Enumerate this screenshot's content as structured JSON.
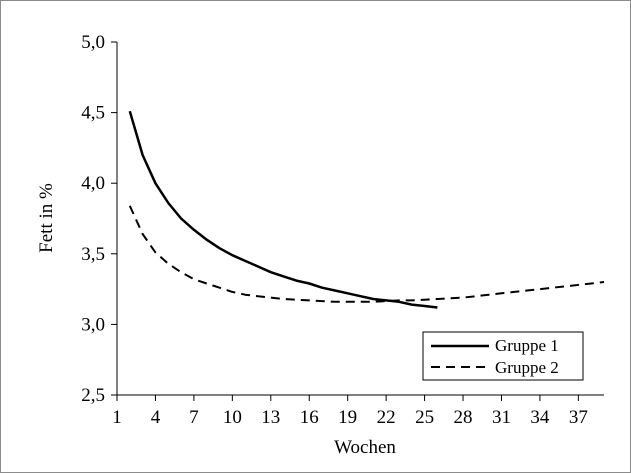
{
  "chart_data": {
    "type": "line",
    "xlabel": "Wochen",
    "ylabel": "Fett in %",
    "xlim": [
      1,
      39
    ],
    "ylim": [
      2.5,
      5.0
    ],
    "x_ticks": [
      1,
      4,
      7,
      10,
      13,
      16,
      19,
      22,
      25,
      28,
      31,
      34,
      37
    ],
    "y_ticks": [
      "2,5",
      "3,0",
      "3,5",
      "4,0",
      "4,5",
      "5,0"
    ],
    "y_tick_values": [
      2.5,
      3.0,
      3.5,
      4.0,
      4.5,
      5.0
    ],
    "grid": false,
    "legend_position": "bottom-right",
    "series": [
      {
        "name": "Gruppe 1",
        "style": "solid",
        "color": "#000000",
        "x": [
          2,
          3,
          4,
          5,
          6,
          7,
          8,
          9,
          10,
          11,
          12,
          13,
          14,
          15,
          16,
          17,
          18,
          19,
          20,
          21,
          22,
          23,
          24,
          25,
          26
        ],
        "y": [
          4.51,
          4.2,
          4.0,
          3.86,
          3.75,
          3.67,
          3.6,
          3.54,
          3.49,
          3.45,
          3.41,
          3.37,
          3.34,
          3.31,
          3.29,
          3.26,
          3.24,
          3.22,
          3.2,
          3.18,
          3.17,
          3.16,
          3.14,
          3.13,
          3.12
        ]
      },
      {
        "name": "Gruppe 2",
        "style": "dashed",
        "color": "#000000",
        "x": [
          2,
          3,
          4,
          5,
          6,
          7,
          8,
          9,
          10,
          11,
          12,
          13,
          14,
          15,
          16,
          17,
          18,
          19,
          20,
          21,
          22,
          23,
          24,
          25,
          26,
          27,
          28,
          29,
          30,
          31,
          32,
          33,
          34,
          35,
          36,
          37,
          38,
          39
        ],
        "y": [
          3.84,
          3.64,
          3.51,
          3.43,
          3.37,
          3.32,
          3.29,
          3.26,
          3.23,
          3.21,
          3.2,
          3.19,
          3.18,
          3.175,
          3.17,
          3.165,
          3.16,
          3.16,
          3.16,
          3.16,
          3.165,
          3.17,
          3.17,
          3.175,
          3.18,
          3.185,
          3.19,
          3.2,
          3.21,
          3.22,
          3.23,
          3.24,
          3.25,
          3.26,
          3.27,
          3.28,
          3.29,
          3.3
        ]
      }
    ]
  }
}
